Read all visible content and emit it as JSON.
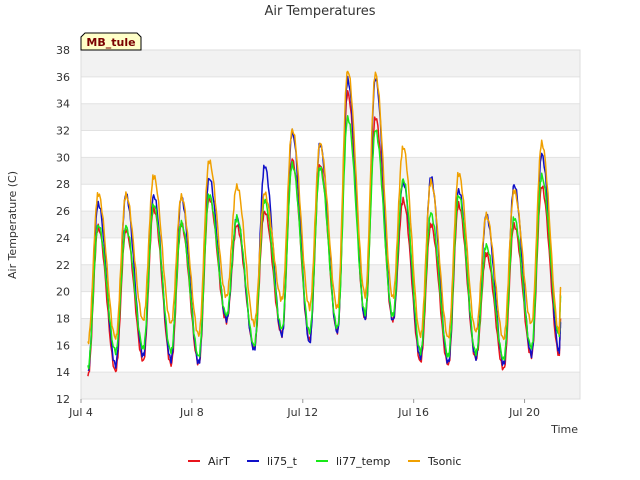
{
  "chart_data": {
    "type": "line",
    "title": "Air Temperatures",
    "xlabel": "Time",
    "ylabel": "Air Temperature (C)",
    "site_label": "MB_tule",
    "ylim": [
      12,
      38
    ],
    "xlim": [
      4,
      22
    ],
    "yticks": [
      12,
      14,
      16,
      18,
      20,
      22,
      24,
      26,
      28,
      30,
      32,
      34,
      36,
      38
    ],
    "xticks": [
      {
        "value": 4,
        "label": "Jul 4"
      },
      {
        "value": 8,
        "label": "Jul 8"
      },
      {
        "value": 12,
        "label": "Jul 12"
      },
      {
        "value": 16,
        "label": "Jul 16"
      },
      {
        "value": 20,
        "label": "Jul 20"
      }
    ],
    "grid": true,
    "legend_position": "bottom",
    "days": [
      4,
      5,
      6,
      7,
      8,
      9,
      10,
      11,
      12,
      13,
      14,
      15,
      16,
      17,
      18,
      19,
      20,
      21
    ],
    "x_end": 21.3,
    "series": [
      {
        "name": "AirT",
        "color": "#e8141c",
        "mins": [
          13.7,
          14.1,
          14.8,
          14.6,
          14.6,
          17.8,
          15.8,
          16.8,
          16.4,
          17.0,
          18.0,
          17.8,
          14.8,
          14.5,
          15.0,
          14.2,
          15.2,
          15.3
        ],
        "maxs": [
          24.8,
          24.6,
          26.2,
          25.0,
          27.0,
          24.9,
          26.0,
          29.8,
          29.5,
          34.8,
          33.0,
          26.8,
          25.0,
          26.5,
          22.8,
          25.0,
          27.8
        ],
        "end_value": 18.0
      },
      {
        "name": "li75_t",
        "color": "#1010c8",
        "mins": [
          14.0,
          14.5,
          15.2,
          14.9,
          14.7,
          17.9,
          15.7,
          16.7,
          16.2,
          16.9,
          18.0,
          17.8,
          15.1,
          14.7,
          15.1,
          14.6,
          15.3,
          15.6
        ],
        "maxs": [
          26.6,
          27.2,
          27.2,
          27.0,
          28.5,
          25.5,
          29.4,
          31.9,
          31.0,
          35.8,
          35.9,
          28.2,
          28.5,
          27.6,
          25.7,
          28.0,
          30.2
        ],
        "end_value": 17.6
      },
      {
        "name": "li77_temp",
        "color": "#18e818",
        "mins": [
          14.3,
          15.5,
          15.8,
          15.5,
          15.2,
          18.2,
          16.0,
          17.2,
          17.0,
          17.3,
          18.4,
          18.2,
          15.5,
          15.2,
          15.4,
          15.0,
          15.8,
          16.8
        ],
        "maxs": [
          25.0,
          24.8,
          26.5,
          25.1,
          27.2,
          25.5,
          26.8,
          29.5,
          29.2,
          33.0,
          32.0,
          28.4,
          25.8,
          27.2,
          23.4,
          25.5,
          28.6
        ],
        "end_value": 19.5
      },
      {
        "name": "Tsonic",
        "color": "#f0a000",
        "mins": [
          16.2,
          16.5,
          17.9,
          17.6,
          16.8,
          19.6,
          17.6,
          19.4,
          18.8,
          18.8,
          19.7,
          19.6,
          16.7,
          16.6,
          17.0,
          16.5,
          17.6,
          17.0
        ],
        "maxs": [
          27.3,
          27.2,
          28.6,
          27.1,
          29.7,
          27.9,
          27.3,
          32.1,
          31.0,
          36.5,
          36.2,
          30.8,
          28.2,
          28.8,
          25.7,
          27.5,
          31.1
        ],
        "end_value": 20.2
      }
    ]
  }
}
